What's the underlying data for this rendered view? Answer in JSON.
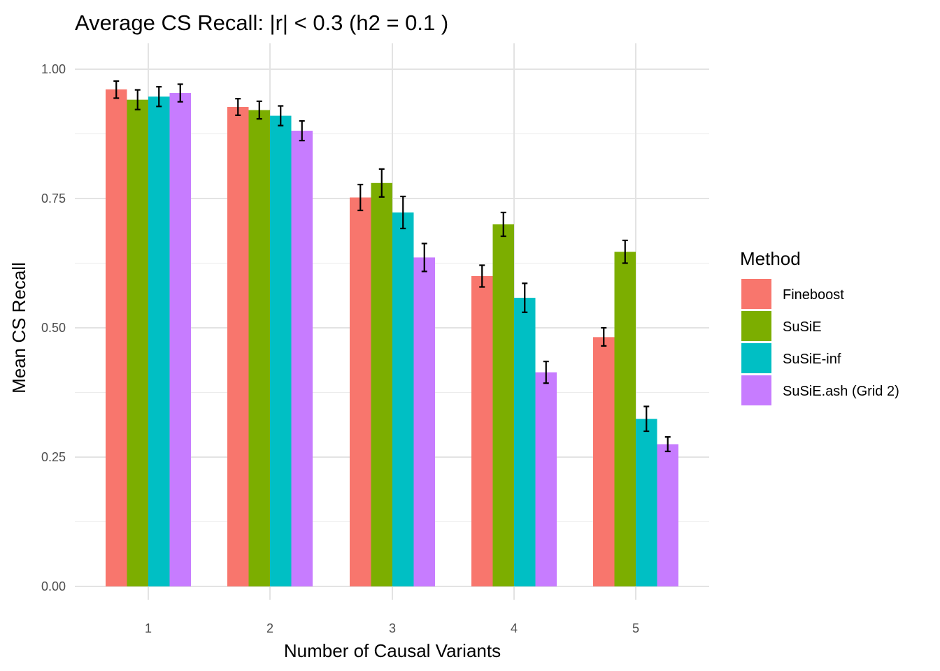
{
  "chart_data": {
    "type": "bar",
    "title": "Average CS Recall: |r| < 0.3 (h2 = 0.1 )",
    "xlabel": "Number of Causal Variants",
    "ylabel": "Mean CS Recall",
    "categories": [
      "1",
      "2",
      "3",
      "4",
      "5"
    ],
    "ylim": [
      0,
      1.0
    ],
    "yticks": [
      "0.00",
      "0.25",
      "0.50",
      "0.75",
      "1.00"
    ],
    "ytick_values": [
      0,
      0.25,
      0.5,
      0.75,
      1.0
    ],
    "grid": true,
    "legend": {
      "title": "Method",
      "position": "right"
    },
    "series": [
      {
        "name": "Fineboost",
        "color": "#F8766D",
        "values": [
          0.961,
          0.927,
          0.752,
          0.6,
          0.482
        ],
        "error_low": [
          0.944,
          0.911,
          0.727,
          0.579,
          0.465
        ],
        "error_high": [
          0.977,
          0.943,
          0.777,
          0.621,
          0.5
        ]
      },
      {
        "name": "SuSiE",
        "color": "#7CAE00",
        "values": [
          0.941,
          0.921,
          0.78,
          0.7,
          0.647
        ],
        "error_low": [
          0.922,
          0.904,
          0.753,
          0.677,
          0.625
        ],
        "error_high": [
          0.96,
          0.938,
          0.807,
          0.723,
          0.669
        ]
      },
      {
        "name": "SuSiE-inf",
        "color": "#00BFC4",
        "values": [
          0.947,
          0.91,
          0.723,
          0.558,
          0.324
        ],
        "error_low": [
          0.928,
          0.891,
          0.692,
          0.53,
          0.3
        ],
        "error_high": [
          0.966,
          0.929,
          0.754,
          0.586,
          0.348
        ]
      },
      {
        "name": "SuSiE.ash (Grid 2)",
        "color": "#C77CFF",
        "values": [
          0.954,
          0.881,
          0.636,
          0.414,
          0.275
        ],
        "error_low": [
          0.937,
          0.862,
          0.609,
          0.393,
          0.261
        ],
        "error_high": [
          0.971,
          0.9,
          0.663,
          0.435,
          0.289
        ]
      }
    ]
  }
}
